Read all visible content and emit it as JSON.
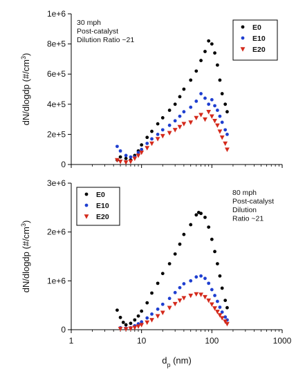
{
  "chart_data": {
    "type": "scatter",
    "xlabel": "d",
    "xlabel_sub": "p",
    "xlabel_unit": " (nm)",
    "x_scale": "log",
    "xlim": [
      1,
      1000
    ],
    "x_ticks": [
      "1",
      "10",
      "100",
      "1000"
    ],
    "panels": [
      {
        "ylabel": "dN/dlogdp (#/cm",
        "ylabel_sup": "3",
        "ylabel_end": ")",
        "ylim": [
          0,
          1000000
        ],
        "y_ticks": [
          "0",
          "2e+5",
          "4e+5",
          "6e+5",
          "8e+5",
          "1e+6"
        ],
        "annotation": [
          "30 mph",
          "Post-catalyst",
          "Dilution Ratio ~21"
        ],
        "legend_position": "top-right",
        "series": [
          {
            "name": "E0",
            "color": "#000000",
            "marker": "circle",
            "points": [
              [
                4.5,
                30000.0
              ],
              [
                5,
                50000.0
              ],
              [
                6,
                40000.0
              ],
              [
                7,
                30000.0
              ],
              [
                8,
                60000.0
              ],
              [
                9,
                90000.0
              ],
              [
                10,
                130000.0
              ],
              [
                12,
                180000.0
              ],
              [
                14,
                220000.0
              ],
              [
                17,
                270000.0
              ],
              [
                20,
                310000.0
              ],
              [
                25,
                360000.0
              ],
              [
                30,
                400000.0
              ],
              [
                35,
                450000.0
              ],
              [
                40,
                500000.0
              ],
              [
                50,
                560000.0
              ],
              [
                60,
                620000.0
              ],
              [
                70,
                690000.0
              ],
              [
                80,
                750000.0
              ],
              [
                90,
                820000.0
              ],
              [
                100,
                800000.0
              ],
              [
                110,
                740000.0
              ],
              [
                120,
                660000.0
              ],
              [
                130,
                560000.0
              ],
              [
                140,
                470000.0
              ],
              [
                155,
                400000.0
              ],
              [
                165,
                350000.0
              ]
            ]
          },
          {
            "name": "E10",
            "color": "#1f3fd0",
            "marker": "circle",
            "points": [
              [
                4.5,
                120000.0
              ],
              [
                5,
                90000.0
              ],
              [
                6,
                60000.0
              ],
              [
                7,
                50000.0
              ],
              [
                8,
                50000.0
              ],
              [
                9,
                80000.0
              ],
              [
                10,
                100000.0
              ],
              [
                12,
                140000.0
              ],
              [
                14,
                170000.0
              ],
              [
                17,
                200000.0
              ],
              [
                20,
                230000.0
              ],
              [
                25,
                260000.0
              ],
              [
                30,
                290000.0
              ],
              [
                35,
                320000.0
              ],
              [
                40,
                350000.0
              ],
              [
                50,
                380000.0
              ],
              [
                60,
                420000.0
              ],
              [
                70,
                470000.0
              ],
              [
                80,
                440000.0
              ],
              [
                90,
                400000.0
              ],
              [
                100,
                430000.0
              ],
              [
                110,
                390000.0
              ],
              [
                120,
                360000.0
              ],
              [
                130,
                320000.0
              ],
              [
                140,
                280000.0
              ],
              [
                155,
                230000.0
              ],
              [
                165,
                200000.0
              ]
            ]
          },
          {
            "name": "E20",
            "color": "#d42a1c",
            "marker": "triangle-down",
            "points": [
              [
                4.5,
                30000.0
              ],
              [
                5,
                20000.0
              ],
              [
                6,
                15000.0
              ],
              [
                7,
                20000.0
              ],
              [
                8,
                40000.0
              ],
              [
                9,
                60000.0
              ],
              [
                10,
                80000.0
              ],
              [
                12,
                110000.0
              ],
              [
                14,
                140000.0
              ],
              [
                17,
                170000.0
              ],
              [
                20,
                190000.0
              ],
              [
                25,
                210000.0
              ],
              [
                30,
                230000.0
              ],
              [
                35,
                250000.0
              ],
              [
                40,
                270000.0
              ],
              [
                50,
                280000.0
              ],
              [
                60,
                310000.0
              ],
              [
                70,
                330000.0
              ],
              [
                80,
                300000.0
              ],
              [
                90,
                350000.0
              ],
              [
                100,
                320000.0
              ],
              [
                110,
                290000.0
              ],
              [
                120,
                260000.0
              ],
              [
                130,
                220000.0
              ],
              [
                140,
                180000.0
              ],
              [
                155,
                140000.0
              ],
              [
                165,
                100000.0
              ]
            ]
          }
        ]
      },
      {
        "ylabel": "dN/dlogdp (#/cm",
        "ylabel_sup": "3",
        "ylabel_end": ")",
        "ylim": [
          0,
          3000000
        ],
        "y_ticks": [
          "0",
          "1e+6",
          "2e+6",
          "3e+6"
        ],
        "annotation": [
          "80 mph",
          "Post-catalyst",
          "Dilution",
          "Ratio ~21"
        ],
        "legend_position": "top-left",
        "series": [
          {
            "name": "E0",
            "color": "#000000",
            "marker": "circle",
            "points": [
              [
                4.5,
                400000.0
              ],
              [
                5,
                250000.0
              ],
              [
                5.5,
                150000.0
              ],
              [
                6,
                100000.0
              ],
              [
                7,
                130000.0
              ],
              [
                8,
                200000.0
              ],
              [
                9,
                280000.0
              ],
              [
                10,
                380000.0
              ],
              [
                12,
                550000.0
              ],
              [
                14,
                750000.0
              ],
              [
                17,
                950000.0
              ],
              [
                20,
                1150000.0
              ],
              [
                25,
                1350000.0
              ],
              [
                30,
                1550000.0
              ],
              [
                35,
                1750000.0
              ],
              [
                40,
                1950000.0
              ],
              [
                50,
                2150000.0
              ],
              [
                60,
                2350000.0
              ],
              [
                65,
                2400000.0
              ],
              [
                70,
                2380000.0
              ],
              [
                80,
                2300000.0
              ],
              [
                90,
                2100000.0
              ],
              [
                100,
                1850000.0
              ],
              [
                110,
                1600000.0
              ],
              [
                120,
                1350000.0
              ],
              [
                130,
                1100000.0
              ],
              [
                140,
                850000.0
              ],
              [
                155,
                600000.0
              ],
              [
                165,
                450000.0
              ]
            ]
          },
          {
            "name": "E10",
            "color": "#1f3fd0",
            "marker": "circle",
            "points": [
              [
                5,
                40000.0
              ],
              [
                6,
                30000.0
              ],
              [
                7,
                40000.0
              ],
              [
                8,
                80000.0
              ],
              [
                9,
                120000.0
              ],
              [
                10,
                160000.0
              ],
              [
                12,
                240000.0
              ],
              [
                14,
                320000.0
              ],
              [
                17,
                420000.0
              ],
              [
                20,
                520000.0
              ],
              [
                25,
                640000.0
              ],
              [
                30,
                760000.0
              ],
              [
                35,
                860000.0
              ],
              [
                40,
                940000.0
              ],
              [
                50,
                1000000.0
              ],
              [
                60,
                1080000.0
              ],
              [
                70,
                1100000.0
              ],
              [
                80,
                1050000.0
              ],
              [
                90,
                950000.0
              ],
              [
                100,
                820000.0
              ],
              [
                110,
                700000.0
              ],
              [
                120,
                580000.0
              ],
              [
                130,
                460000.0
              ],
              [
                140,
                360000.0
              ],
              [
                155,
                260000.0
              ],
              [
                165,
                200000.0
              ]
            ]
          },
          {
            "name": "E20",
            "color": "#d42a1c",
            "marker": "triangle-down",
            "points": [
              [
                5,
                20000.0
              ],
              [
                6,
                15000.0
              ],
              [
                7,
                25000.0
              ],
              [
                8,
                45000.0
              ],
              [
                9,
                70000.0
              ],
              [
                10,
                100000.0
              ],
              [
                12,
                150000.0
              ],
              [
                14,
                200000.0
              ],
              [
                17,
                280000.0
              ],
              [
                20,
                350000.0
              ],
              [
                25,
                450000.0
              ],
              [
                30,
                530000.0
              ],
              [
                35,
                600000.0
              ],
              [
                40,
                650000.0
              ],
              [
                50,
                700000.0
              ],
              [
                60,
                730000.0
              ],
              [
                70,
                720000.0
              ],
              [
                80,
                670000.0
              ],
              [
                90,
                600000.0
              ],
              [
                100,
                520000.0
              ],
              [
                110,
                440000.0
              ],
              [
                120,
                370000.0
              ],
              [
                130,
                300000.0
              ],
              [
                140,
                240000.0
              ],
              [
                155,
                170000.0
              ],
              [
                165,
                120000.0
              ]
            ]
          }
        ]
      }
    ]
  }
}
